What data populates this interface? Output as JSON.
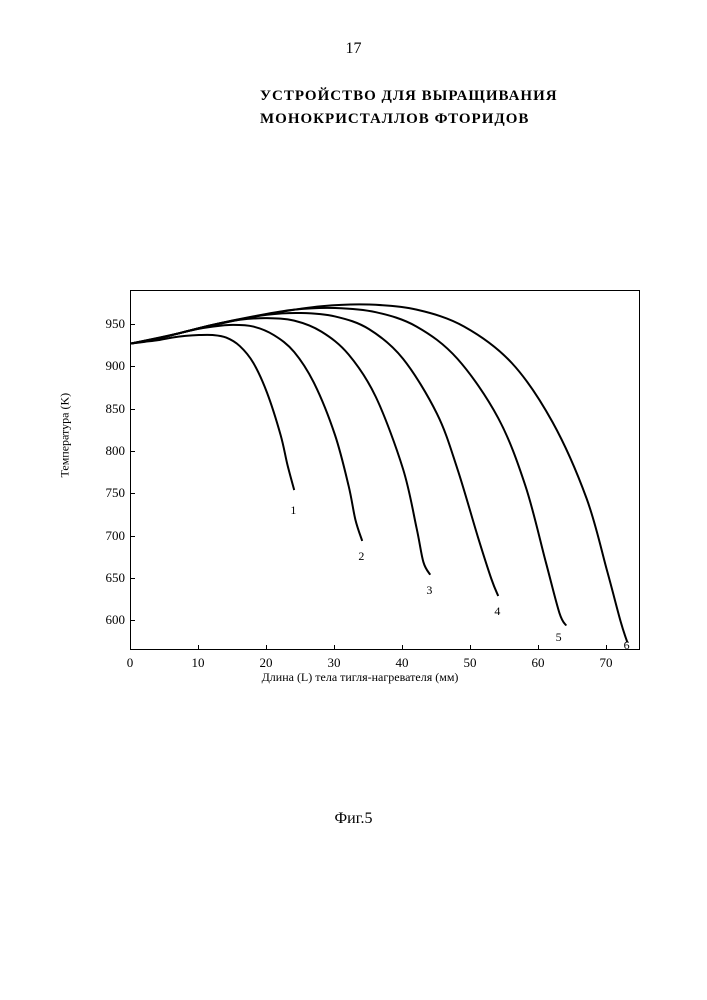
{
  "page_number": "17",
  "title": "УСТРОЙСТВО ДЛЯ ВЫРАЩИВАНИЯ МОНОКРИСТАЛЛОВ ФТОРИДОВ",
  "figure_caption": "Фиг.5",
  "chart": {
    "type": "line",
    "xlabel": "Длина (L) тела тигля-нагревателя (мм)",
    "ylabel": "Температура (K)",
    "xlim": [
      0,
      75
    ],
    "ylim": [
      565,
      990
    ],
    "x_ticks": [
      0,
      10,
      20,
      30,
      40,
      50,
      60,
      70
    ],
    "y_ticks": [
      600,
      650,
      700,
      750,
      800,
      850,
      900,
      950
    ],
    "background_color": "#ffffff",
    "border_color": "#000000",
    "line_color": "#000000",
    "line_width": 2,
    "axis_fontsize": 12,
    "tick_fontsize": 13,
    "series": [
      {
        "label": "1",
        "label_pos": {
          "x": 23,
          "y": 745
        },
        "points": [
          {
            "x": 0,
            "y": 928
          },
          {
            "x": 2,
            "y": 930
          },
          {
            "x": 4,
            "y": 932
          },
          {
            "x": 6,
            "y": 935
          },
          {
            "x": 8,
            "y": 937
          },
          {
            "x": 10,
            "y": 938
          },
          {
            "x": 12,
            "y": 938
          },
          {
            "x": 14,
            "y": 935
          },
          {
            "x": 16,
            "y": 925
          },
          {
            "x": 18,
            "y": 905
          },
          {
            "x": 20,
            "y": 870
          },
          {
            "x": 22,
            "y": 820
          },
          {
            "x": 23,
            "y": 785
          },
          {
            "x": 24,
            "y": 755
          }
        ]
      },
      {
        "label": "2",
        "label_pos": {
          "x": 33,
          "y": 690
        },
        "points": [
          {
            "x": 0,
            "y": 928
          },
          {
            "x": 3,
            "y": 932
          },
          {
            "x": 6,
            "y": 938
          },
          {
            "x": 9,
            "y": 944
          },
          {
            "x": 12,
            "y": 948
          },
          {
            "x": 15,
            "y": 950
          },
          {
            "x": 18,
            "y": 948
          },
          {
            "x": 21,
            "y": 938
          },
          {
            "x": 24,
            "y": 918
          },
          {
            "x": 27,
            "y": 880
          },
          {
            "x": 30,
            "y": 820
          },
          {
            "x": 32,
            "y": 760
          },
          {
            "x": 33,
            "y": 720
          },
          {
            "x": 34,
            "y": 695
          }
        ]
      },
      {
        "label": "3",
        "label_pos": {
          "x": 43,
          "y": 650
        },
        "points": [
          {
            "x": 0,
            "y": 928
          },
          {
            "x": 4,
            "y": 934
          },
          {
            "x": 8,
            "y": 942
          },
          {
            "x": 12,
            "y": 950
          },
          {
            "x": 16,
            "y": 956
          },
          {
            "x": 20,
            "y": 958
          },
          {
            "x": 24,
            "y": 955
          },
          {
            "x": 28,
            "y": 942
          },
          {
            "x": 32,
            "y": 915
          },
          {
            "x": 36,
            "y": 865
          },
          {
            "x": 40,
            "y": 780
          },
          {
            "x": 42,
            "y": 710
          },
          {
            "x": 43,
            "y": 670
          },
          {
            "x": 44,
            "y": 655
          }
        ]
      },
      {
        "label": "4",
        "label_pos": {
          "x": 53,
          "y": 625
        },
        "points": [
          {
            "x": 0,
            "y": 928
          },
          {
            "x": 5,
            "y": 936
          },
          {
            "x": 10,
            "y": 946
          },
          {
            "x": 15,
            "y": 955
          },
          {
            "x": 20,
            "y": 962
          },
          {
            "x": 25,
            "y": 964
          },
          {
            "x": 30,
            "y": 960
          },
          {
            "x": 35,
            "y": 945
          },
          {
            "x": 40,
            "y": 910
          },
          {
            "x": 45,
            "y": 845
          },
          {
            "x": 48,
            "y": 780
          },
          {
            "x": 51,
            "y": 700
          },
          {
            "x": 53,
            "y": 650
          },
          {
            "x": 54,
            "y": 630
          }
        ]
      },
      {
        "label": "5",
        "label_pos": {
          "x": 62,
          "y": 595
        },
        "points": [
          {
            "x": 0,
            "y": 928
          },
          {
            "x": 6,
            "y": 938
          },
          {
            "x": 12,
            "y": 950
          },
          {
            "x": 18,
            "y": 960
          },
          {
            "x": 24,
            "y": 968
          },
          {
            "x": 30,
            "y": 970
          },
          {
            "x": 36,
            "y": 965
          },
          {
            "x": 42,
            "y": 948
          },
          {
            "x": 48,
            "y": 910
          },
          {
            "x": 54,
            "y": 840
          },
          {
            "x": 58,
            "y": 760
          },
          {
            "x": 61,
            "y": 670
          },
          {
            "x": 63,
            "y": 610
          },
          {
            "x": 64,
            "y": 595
          }
        ]
      },
      {
        "label": "6",
        "label_pos": {
          "x": 72,
          "y": 585
        },
        "points": [
          {
            "x": 0,
            "y": 928
          },
          {
            "x": 7,
            "y": 940
          },
          {
            "x": 14,
            "y": 953
          },
          {
            "x": 21,
            "y": 964
          },
          {
            "x": 28,
            "y": 972
          },
          {
            "x": 35,
            "y": 974
          },
          {
            "x": 42,
            "y": 968
          },
          {
            "x": 49,
            "y": 948
          },
          {
            "x": 56,
            "y": 905
          },
          {
            "x": 62,
            "y": 835
          },
          {
            "x": 67,
            "y": 745
          },
          {
            "x": 70,
            "y": 660
          },
          {
            "x": 72,
            "y": 600
          },
          {
            "x": 73,
            "y": 575
          }
        ]
      }
    ]
  }
}
